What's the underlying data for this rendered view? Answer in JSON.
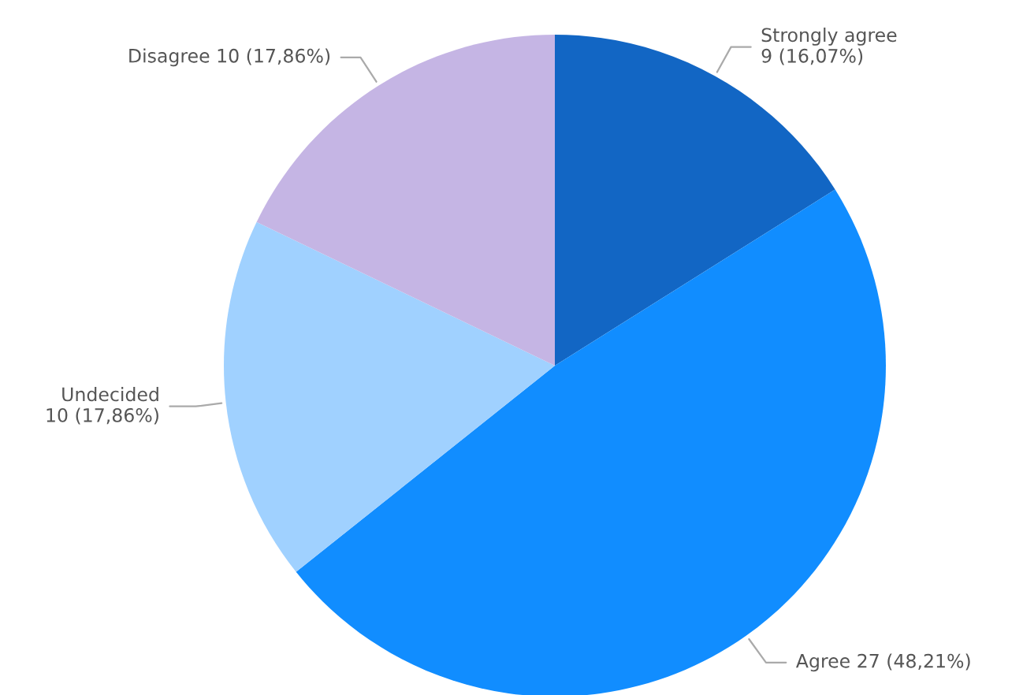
{
  "chart_data": {
    "type": "pie",
    "categories": [
      "Strongly agree",
      "Agree",
      "Undecided",
      "Disagree"
    ],
    "values": [
      9,
      27,
      10,
      10
    ],
    "value_labels": [
      "9 (16,07%)",
      "27 (48,21%)",
      "10 (17,86%)",
      "10 (17,86%)"
    ],
    "colors": [
      "#1266c4",
      "#118dff",
      "#a0d1ff",
      "#c5b5e4"
    ],
    "legend": false
  }
}
